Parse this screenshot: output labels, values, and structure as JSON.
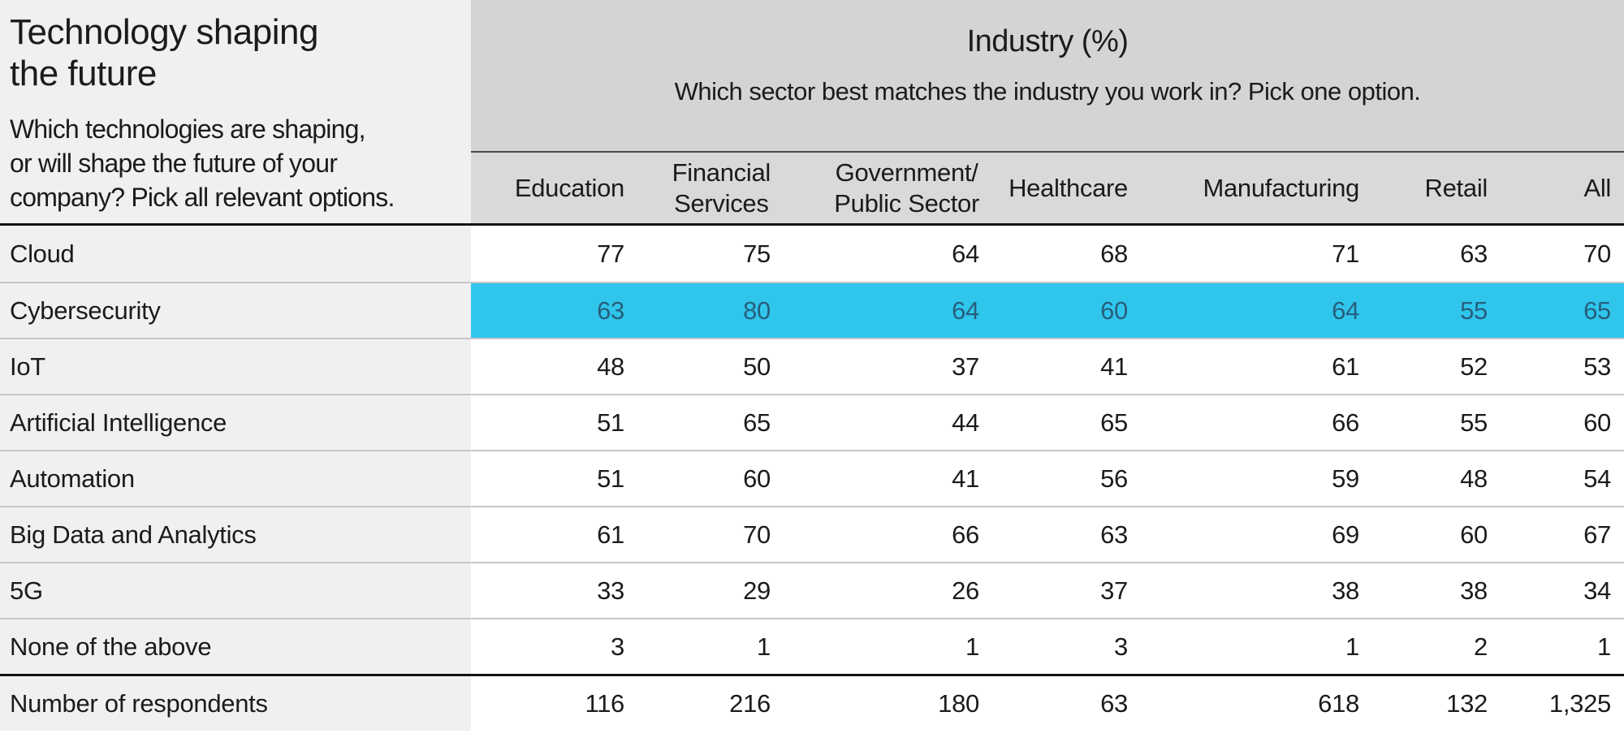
{
  "colors": {
    "left_panel_bg": "#f0f0f0",
    "industry_band_bg": "#d4d4d4",
    "column_header_bg": "#d9d9d9",
    "highlight_bg": "#30c6ec",
    "highlight_text": "#265f7d",
    "heavy_rule": "#141414",
    "light_rule": "#c7c7c7",
    "text": "#1b1b1b"
  },
  "left_header": {
    "title": "Technology shaping\nthe future",
    "subtitle": "Which technologies are shaping,\nor will shape the future of your\ncompany? Pick all relevant options."
  },
  "industry_header": {
    "title": "Industry (%)",
    "subtitle": "Which sector best matches the industry you work in? Pick one option."
  },
  "chart_data": {
    "type": "table",
    "title": "Technology shaping the future",
    "row_question": "Which technologies are shaping, or will shape the future of your company? Pick all relevant options.",
    "column_question": "Which sector best matches the industry you work in? Pick one option.",
    "unit": "Industry (%)",
    "columns": [
      {
        "name": "Education",
        "label": "Education"
      },
      {
        "name": "Financial Services",
        "label": "Financial\nServices"
      },
      {
        "name": "Government/Public Sector",
        "label": "Government/\nPublic Sector"
      },
      {
        "name": "Healthcare",
        "label": "Healthcare"
      },
      {
        "name": "Manufacturing",
        "label": "Manufacturing"
      },
      {
        "name": "Retail",
        "label": "Retail"
      },
      {
        "name": "All",
        "label": "All"
      }
    ],
    "rows": [
      {
        "label": "Cloud",
        "values": [
          77,
          75,
          64,
          68,
          71,
          63,
          70
        ],
        "highlighted": false,
        "total": false
      },
      {
        "label": "Cybersecurity",
        "values": [
          63,
          80,
          64,
          60,
          64,
          55,
          65
        ],
        "highlighted": true,
        "total": false
      },
      {
        "label": "IoT",
        "values": [
          48,
          50,
          37,
          41,
          61,
          52,
          53
        ],
        "highlighted": false,
        "total": false
      },
      {
        "label": "Artificial Intelligence",
        "values": [
          51,
          65,
          44,
          65,
          66,
          55,
          60
        ],
        "highlighted": false,
        "total": false
      },
      {
        "label": "Automation",
        "values": [
          51,
          60,
          41,
          56,
          59,
          48,
          54
        ],
        "highlighted": false,
        "total": false
      },
      {
        "label": "Big Data and Analytics",
        "values": [
          61,
          70,
          66,
          63,
          69,
          60,
          67
        ],
        "highlighted": false,
        "total": false
      },
      {
        "label": "5G",
        "values": [
          33,
          29,
          26,
          37,
          38,
          38,
          34
        ],
        "highlighted": false,
        "total": false
      },
      {
        "label": "None of the above",
        "values": [
          3,
          1,
          1,
          3,
          1,
          2,
          1
        ],
        "highlighted": false,
        "total": false
      },
      {
        "label": "Number of respondents",
        "values": [
          "116",
          "216",
          "180",
          "63",
          "618",
          "132",
          "1,325"
        ],
        "highlighted": false,
        "total": true
      }
    ]
  }
}
